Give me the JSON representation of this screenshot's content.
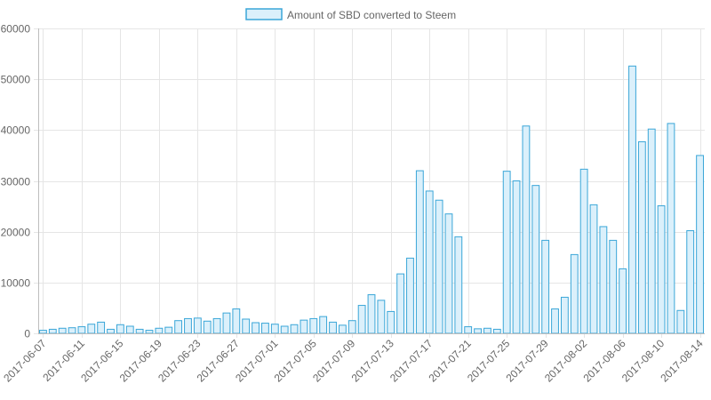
{
  "chart_data": {
    "type": "bar",
    "legend": {
      "position": "top",
      "label": "Amount of SBD converted to Steem"
    },
    "series": [
      {
        "name": "Amount of SBD converted to Steem",
        "fill": "#dbf0fb",
        "stroke": "#3aa6d8",
        "values": [
          600,
          800,
          1000,
          1100,
          1300,
          1800,
          2200,
          800,
          1700,
          1400,
          800,
          600,
          1000,
          1200,
          2500,
          2900,
          3000,
          2400,
          2900,
          4000,
          4800,
          2800,
          2100,
          2000,
          1800,
          1400,
          1700,
          2600,
          2900,
          3300,
          2200,
          1600,
          2500,
          5500,
          7600,
          6500,
          4300,
          11700,
          14800,
          32000,
          28000,
          26200,
          23500,
          19000,
          1300,
          900,
          1000,
          800,
          31900,
          30000,
          40800,
          29100,
          18300,
          4800,
          7100,
          15500,
          32300,
          25300,
          21000,
          18300,
          12700,
          52600,
          37700,
          40200,
          25100,
          41300,
          4500,
          20200,
          35000
        ]
      }
    ],
    "x_tick_labels": [
      "2017-06-07",
      "2017-06-11",
      "2017-06-15",
      "2017-06-19",
      "2017-06-23",
      "2017-06-27",
      "2017-07-01",
      "2017-07-05",
      "2017-07-09",
      "2017-07-13",
      "2017-07-17",
      "2017-07-21",
      "2017-07-25",
      "2017-07-29",
      "2017-08-02",
      "2017-08-06",
      "2017-08-10",
      "2017-08-14"
    ],
    "x_tick_every": 4,
    "y_ticks": [
      0,
      10000,
      20000,
      30000,
      40000,
      50000,
      60000
    ],
    "ylim": [
      0,
      60000
    ],
    "grid": true,
    "grid_color": "#e5e5e5",
    "axis_color": "#bdbdbd",
    "title": "",
    "xlabel": "",
    "ylabel": ""
  }
}
